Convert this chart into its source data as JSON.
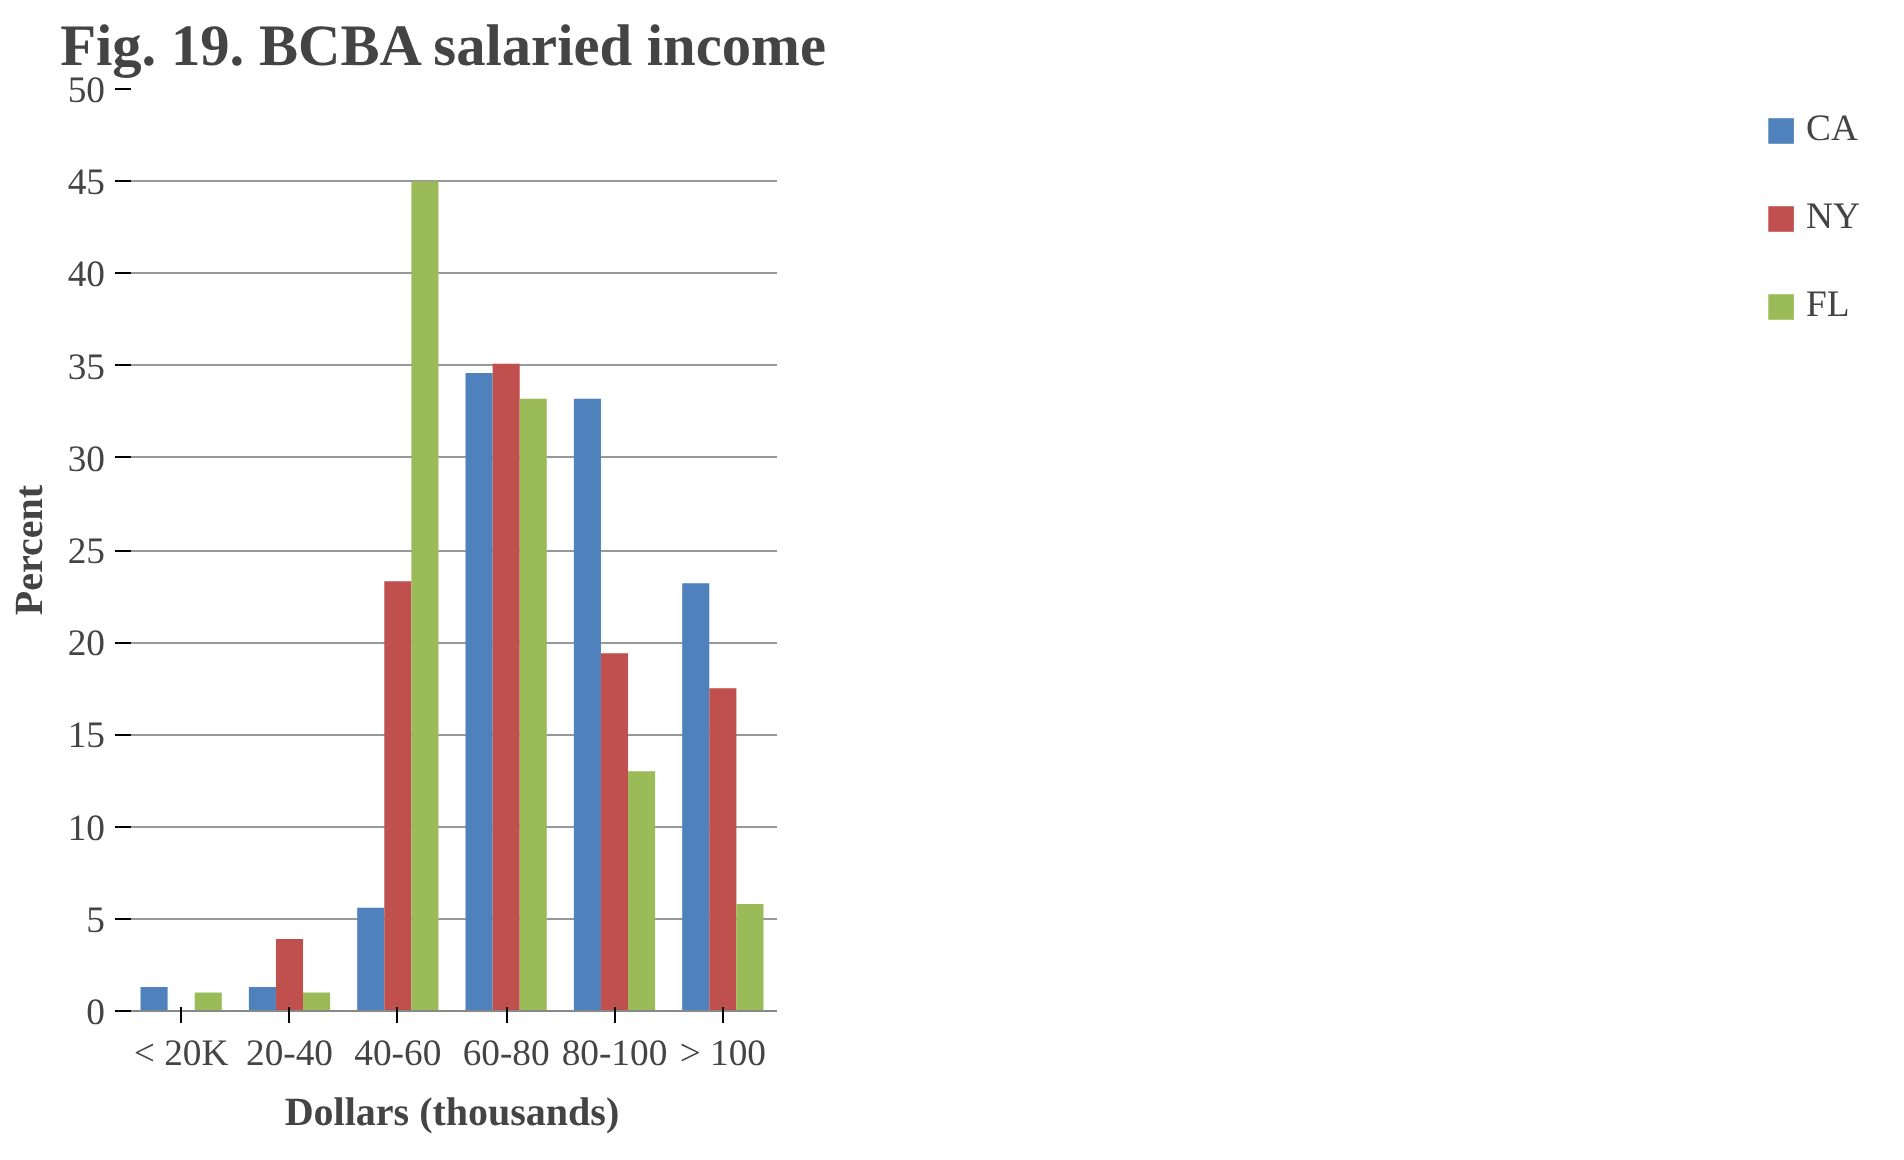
{
  "chart_data": {
    "type": "bar",
    "title": "Fig. 19.  BCBA salaried income",
    "xlabel": "Dollars (thousands)",
    "ylabel": "Percent",
    "categories": [
      "< 20K",
      "20-40",
      "40-60",
      "60-80",
      "80-100",
      "> 100"
    ],
    "series": [
      {
        "name": "CA",
        "color": "#4f81bd",
        "values": [
          1.3,
          1.3,
          5.6,
          34.6,
          33.2,
          23.2
        ]
      },
      {
        "name": "NY",
        "color": "#c0504d",
        "values": [
          0,
          3.9,
          23.3,
          35.1,
          19.4,
          17.5
        ]
      },
      {
        "name": "FL",
        "color": "#9bbb59",
        "values": [
          1.0,
          1.0,
          45,
          33.2,
          13.0,
          5.8
        ]
      }
    ],
    "ylim": [
      0,
      50
    ],
    "yticks": [
      0,
      5,
      10,
      15,
      20,
      25,
      30,
      35,
      40,
      45,
      50
    ],
    "grid": "y",
    "legend": "right"
  }
}
